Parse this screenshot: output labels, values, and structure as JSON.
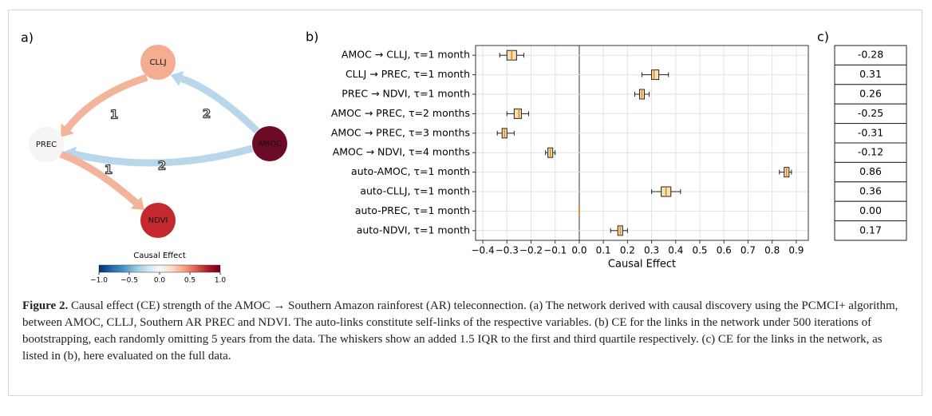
{
  "panel_a": {
    "label": "a)",
    "nodes": [
      {
        "label": "CLLJ",
        "color": "#f4ad90"
      },
      {
        "label": "PREC",
        "color": "#f5f5f5"
      },
      {
        "label": "AMOC",
        "color": "#6d0a26"
      },
      {
        "label": "NDVI",
        "color": "#c4292f"
      }
    ],
    "edges": [
      {
        "from": 0,
        "to": 1,
        "label": "1",
        "color": "#f2b49a"
      },
      {
        "from": 2,
        "to": 0,
        "label": "2",
        "color": "#b9d6ea"
      },
      {
        "from": 2,
        "to": 1,
        "label": "2",
        "color": "#b9d6ea"
      },
      {
        "from": 1,
        "to": 3,
        "label": "1",
        "color": "#f2b49a"
      }
    ],
    "colorbar": {
      "title": "Causal Effect",
      "lim": [
        -1,
        1
      ],
      "colors": [
        "#053061",
        "#2166ac",
        "#4393c3",
        "#92c5de",
        "#d1e5f0",
        "#f7f7f7",
        "#fddbc7",
        "#f4a582",
        "#d6604d",
        "#b2182b",
        "#67001f"
      ],
      "ticks": [
        {
          "value": -1,
          "label": "−1.0"
        },
        {
          "value": -0.5,
          "label": "−0.5"
        },
        {
          "value": 0,
          "label": "0.0"
        },
        {
          "value": 0.5,
          "label": "0.5"
        },
        {
          "value": 1,
          "label": "1.0"
        }
      ]
    }
  },
  "chart_data": {
    "type": "box",
    "panel_label": "b)",
    "xlabel": "Causal Effect",
    "categories": [
      "AMOC → CLLJ, τ=1 month",
      "CLLJ → PREC, τ=1 month",
      "PREC → NDVI, τ=1 month",
      "AMOC → PREC, τ=2 months",
      "AMOC → PREC, τ=3 months",
      "AMOC → NDVI, τ=4 months",
      "auto-AMOC, τ=1 month",
      "auto-CLLJ, τ=1 month",
      "auto-PREC, τ=1 month",
      "auto-NDVI, τ=1 month"
    ],
    "whislo": [
      -0.33,
      0.26,
      0.23,
      -0.3,
      -0.34,
      -0.14,
      0.83,
      0.3,
      0,
      0.13
    ],
    "q1": [
      -0.3,
      0.3,
      0.25,
      -0.27,
      -0.32,
      -0.13,
      0.85,
      0.34,
      0,
      0.16
    ],
    "median": [
      -0.28,
      0.31,
      0.26,
      -0.25,
      -0.31,
      -0.12,
      0.86,
      0.36,
      0,
      0.17
    ],
    "q3": [
      -0.26,
      0.33,
      0.27,
      -0.24,
      -0.3,
      -0.11,
      0.87,
      0.38,
      0,
      0.18
    ],
    "whishi": [
      -0.23,
      0.37,
      0.29,
      -0.21,
      -0.27,
      -0.1,
      0.88,
      0.42,
      0,
      0.2
    ],
    "box_color": "#f7dfb7",
    "median_color": "#e8850c",
    "xlim": [
      -0.43,
      0.95
    ],
    "xticks": [
      {
        "value": -0.4,
        "label": "−0.4"
      },
      {
        "value": -0.3,
        "label": "−0.3"
      },
      {
        "value": -0.2,
        "label": "−0.2"
      },
      {
        "value": -0.1,
        "label": "−0.1"
      },
      {
        "value": 0,
        "label": "0.0"
      },
      0.1,
      0.2,
      0.3,
      0.4,
      0.5,
      0.6,
      0.7,
      0.8,
      0.9
    ],
    "grid": true
  },
  "panel_c": {
    "label": "c)",
    "rows": [
      "-0.28",
      "0.31",
      "0.26",
      "-0.25",
      "-0.31",
      "-0.12",
      "0.86",
      "0.36",
      "0.00",
      "0.17"
    ]
  },
  "caption": {
    "label": "Figure 2.",
    "text": "Causal effect (CE) strength of the AMOC → Southern Amazon rainforest (AR) teleconnection. (a) The network derived with causal discovery using the PCMCI+ algorithm, between AMOC, CLLJ, Southern AR PREC and NDVI. The auto-links constitute self-links of the respective variables. (b) CE for the links in the network under 500 iterations of bootstrapping, each randomly omitting 5 years from the data. The whiskers show an added 1.5 IQR to the first and third quartile respectively. (c) CE for the links in the network, as listed in (b), here evaluated on the full data."
  }
}
